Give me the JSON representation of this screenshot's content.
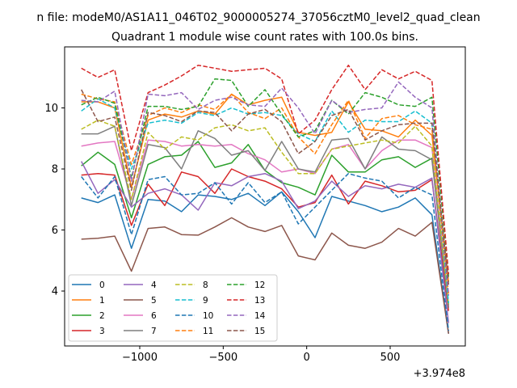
{
  "chart_data": {
    "type": "line",
    "suptitle": "n file: modeM0/AS1A11_046T02_9000005274_37056cztM0_level2_quad_clean",
    "title": "Quadrant 1 module wise count rates with 100.0s bins.",
    "xlabel": "",
    "ylabel": "",
    "x_offset_label": "+3.974e8",
    "xlim": [
      -1450,
      950
    ],
    "ylim": [
      2.2,
      12.0
    ],
    "xticks": [
      -1000,
      -500,
      0,
      500
    ],
    "xtick_labels": [
      "−1000",
      "−500",
      "0",
      "500"
    ],
    "yticks": [
      4,
      6,
      8,
      10
    ],
    "ytick_labels": [
      "4",
      "6",
      "8",
      "10"
    ],
    "grid": false,
    "legend_position": "lower-left",
    "x": [
      -1350,
      -1250,
      -1150,
      -1050,
      -950,
      -850,
      -750,
      -650,
      -550,
      -450,
      -350,
      -250,
      -150,
      -50,
      50,
      150,
      250,
      350,
      450,
      550,
      650,
      750,
      850
    ],
    "series": [
      {
        "name": "0",
        "color": "#1f77b4",
        "dash": "solid",
        "values": [
          7.05,
          6.9,
          7.15,
          5.4,
          7.0,
          6.95,
          6.6,
          7.15,
          7.1,
          7.0,
          7.2,
          6.8,
          7.25,
          6.6,
          5.75,
          7.1,
          6.95,
          6.8,
          6.6,
          6.75,
          7.05,
          6.5,
          2.6
        ]
      },
      {
        "name": "1",
        "color": "#ff7f0e",
        "dash": "solid",
        "values": [
          10.2,
          10.2,
          10.0,
          7.4,
          9.6,
          9.8,
          9.7,
          9.9,
          9.8,
          10.45,
          10.1,
          10.25,
          10.35,
          9.2,
          9.1,
          9.2,
          10.2,
          9.3,
          9.25,
          9.05,
          9.6,
          9.1,
          4.3
        ]
      },
      {
        "name": "2",
        "color": "#2ca02c",
        "dash": "solid",
        "values": [
          8.1,
          8.55,
          8.15,
          6.4,
          8.15,
          8.4,
          8.45,
          8.9,
          8.05,
          8.2,
          8.8,
          7.95,
          7.55,
          7.4,
          7.15,
          8.45,
          7.9,
          7.9,
          8.3,
          8.4,
          8.05,
          8.35,
          3.55
        ]
      },
      {
        "name": "3",
        "color": "#d62728",
        "dash": "solid",
        "values": [
          7.8,
          7.85,
          7.8,
          6.15,
          7.5,
          6.8,
          7.9,
          7.75,
          7.2,
          8.0,
          7.75,
          7.6,
          7.35,
          6.75,
          6.9,
          7.8,
          6.85,
          7.6,
          7.45,
          7.25,
          7.3,
          7.65,
          3.35
        ]
      },
      {
        "name": "4",
        "color": "#9467bd",
        "dash": "solid",
        "values": [
          8.25,
          7.2,
          7.65,
          6.75,
          7.2,
          7.35,
          7.15,
          6.65,
          7.55,
          7.45,
          7.75,
          7.85,
          7.6,
          6.7,
          6.95,
          7.6,
          7.1,
          7.45,
          7.35,
          7.5,
          7.4,
          7.7,
          2.95
        ]
      },
      {
        "name": "5",
        "color": "#8c564b",
        "dash": "solid",
        "values": [
          5.7,
          5.73,
          5.8,
          4.65,
          6.05,
          6.1,
          5.85,
          5.83,
          6.1,
          6.4,
          6.1,
          5.95,
          6.15,
          5.15,
          5.02,
          5.9,
          5.5,
          5.4,
          5.6,
          6.05,
          5.8,
          6.25,
          2.6
        ]
      },
      {
        "name": "6",
        "color": "#e377c2",
        "dash": "solid",
        "values": [
          8.75,
          8.85,
          8.9,
          7.0,
          8.95,
          8.9,
          8.75,
          8.8,
          8.75,
          8.8,
          8.5,
          8.3,
          7.9,
          8.0,
          7.85,
          8.65,
          8.8,
          8.0,
          8.6,
          8.95,
          8.95,
          8.7,
          3.5
        ]
      },
      {
        "name": "7",
        "color": "#7f7f7f",
        "dash": "solid",
        "values": [
          9.15,
          9.15,
          9.4,
          6.8,
          8.8,
          8.7,
          8.0,
          9.25,
          9.0,
          8.45,
          8.6,
          7.95,
          8.9,
          8.0,
          7.9,
          8.95,
          9.0,
          8.0,
          9.05,
          8.65,
          8.6,
          8.3,
          3.45
        ]
      },
      {
        "name": "8",
        "color": "#bcbd22",
        "dash": "dashed",
        "values": [
          9.3,
          9.6,
          9.4,
          7.0,
          9.2,
          8.65,
          9.05,
          8.95,
          9.35,
          9.45,
          9.25,
          9.35,
          8.55,
          7.85,
          7.85,
          8.65,
          8.75,
          8.85,
          8.95,
          8.85,
          9.4,
          8.75,
          3.55
        ]
      },
      {
        "name": "9",
        "color": "#17becf",
        "dash": "dashed",
        "values": [
          9.9,
          10.3,
          10.0,
          8.0,
          9.5,
          9.6,
          9.5,
          9.85,
          9.75,
          10.0,
          9.8,
          9.85,
          9.75,
          9.15,
          8.9,
          9.9,
          9.2,
          9.6,
          9.55,
          9.55,
          9.9,
          9.5,
          3.6
        ]
      },
      {
        "name": "10",
        "color": "#1f77b4",
        "dash": "dashed",
        "values": [
          7.75,
          7.05,
          7.75,
          5.85,
          7.65,
          7.75,
          7.15,
          7.2,
          7.55,
          6.85,
          7.55,
          6.9,
          7.25,
          6.2,
          6.75,
          7.3,
          7.85,
          7.7,
          7.6,
          7.05,
          7.4,
          7.15,
          2.7
        ]
      },
      {
        "name": "11",
        "color": "#ff7f0e",
        "dash": "dashed",
        "values": [
          10.45,
          10.3,
          10.2,
          8.15,
          9.75,
          10.0,
          9.85,
          10.1,
          9.95,
          10.45,
          9.85,
          9.65,
          10.0,
          9.05,
          8.5,
          9.45,
          10.25,
          9.0,
          9.65,
          9.75,
          9.45,
          9.3,
          3.9
        ]
      },
      {
        "name": "12",
        "color": "#2ca02c",
        "dash": "dashed",
        "values": [
          10.1,
          10.35,
          10.15,
          7.7,
          10.05,
          10.05,
          9.95,
          10.05,
          10.95,
          10.9,
          10.05,
          10.6,
          9.8,
          9.05,
          9.25,
          10.25,
          9.8,
          10.5,
          10.35,
          10.1,
          10.05,
          10.35,
          4.45
        ]
      },
      {
        "name": "13",
        "color": "#d62728",
        "dash": "dashed",
        "values": [
          11.3,
          11.0,
          11.25,
          8.6,
          10.5,
          10.75,
          11.05,
          11.4,
          11.3,
          11.2,
          11.25,
          11.3,
          10.95,
          9.15,
          9.6,
          10.6,
          11.4,
          10.6,
          11.25,
          10.95,
          11.2,
          10.9,
          4.55
        ]
      },
      {
        "name": "14",
        "color": "#9467bd",
        "dash": "dashed",
        "values": [
          10.25,
          10.2,
          10.55,
          7.6,
          10.45,
          10.4,
          10.5,
          9.95,
          10.25,
          10.35,
          10.1,
          10.05,
          10.65,
          10.0,
          9.15,
          10.25,
          9.85,
          9.95,
          10.0,
          10.85,
          10.35,
          10.0,
          3.85
        ]
      },
      {
        "name": "15",
        "color": "#8c564b",
        "dash": "dashed",
        "values": [
          10.6,
          9.55,
          9.7,
          7.3,
          9.85,
          9.75,
          9.55,
          9.9,
          9.85,
          9.25,
          9.8,
          9.95,
          9.55,
          8.5,
          8.9,
          9.75,
          9.95,
          8.95,
          9.25,
          9.45,
          9.5,
          9.5,
          4.2
        ]
      }
    ]
  }
}
